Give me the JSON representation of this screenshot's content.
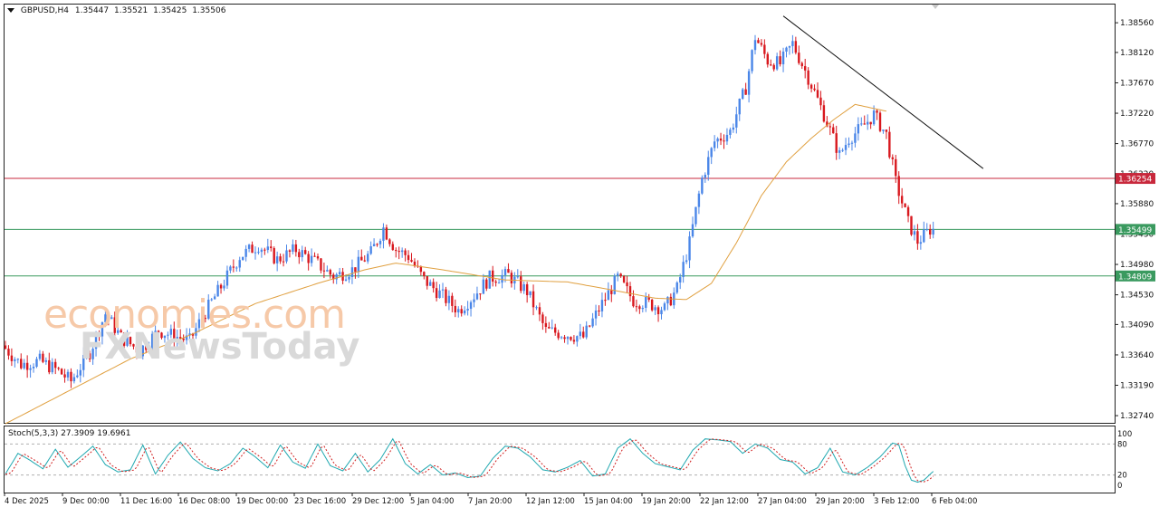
{
  "header": {
    "symbol": "GBPUSD,H4",
    "open": "1.35447",
    "high": "1.35521",
    "low": "1.35425",
    "close": "1.35506",
    "menu_icon": "triangle-down-icon"
  },
  "watermark": {
    "line1": "economies.com",
    "line2": "FXNewsToday"
  },
  "stoch": {
    "label": "Stoch(5,3,3) 27.3909 19.6961",
    "levels": [
      "100",
      "80",
      "20",
      "0"
    ]
  },
  "chart_data": {
    "type": "candlestick",
    "title": "GBPUSD,H4",
    "ylim": [
      1.3262,
      1.3883
    ],
    "y_ticks": [
      "1.38560",
      "1.38120",
      "1.37670",
      "1.37220",
      "1.36770",
      "1.36320",
      "1.35880",
      "1.35430",
      "1.34980",
      "1.34530",
      "1.34090",
      "1.33640",
      "1.33190",
      "1.32740"
    ],
    "x_ticks": [
      "4 Dec 2025",
      "9 Dec 00:00",
      "11 Dec 16:00",
      "16 Dec 08:00",
      "19 Dec 00:00",
      "23 Dec 16:00",
      "29 Dec 12:00",
      "5 Jan 04:00",
      "7 Jan 20:00",
      "12 Jan 12:00",
      "15 Jan 04:00",
      "19 Jan 20:00",
      "22 Jan 12:00",
      "27 Jan 04:00",
      "29 Jan 20:00",
      "3 Feb 12:00",
      "6 Feb 04:00"
    ],
    "price_levels": [
      {
        "value": 1.36254,
        "label": "1.36254",
        "color": "#c8283c"
      },
      {
        "value": 1.35499,
        "label": "1.35499",
        "color": "#3a9a5f"
      },
      {
        "value": 1.34809,
        "label": "1.34809",
        "color": "#3a9a5f"
      }
    ],
    "colors": {
      "bull": "#4a86e8",
      "bear": "#d8181e",
      "ma": "#e0a040",
      "stoch_main": "#20a8b0",
      "stoch_signal": "#d02020"
    },
    "anchors": [
      [
        0,
        1.3378
      ],
      [
        6,
        1.335
      ],
      [
        12,
        1.3355
      ],
      [
        18,
        1.334
      ],
      [
        22,
        1.3325
      ],
      [
        28,
        1.3368
      ],
      [
        33,
        1.3425
      ],
      [
        38,
        1.339
      ],
      [
        44,
        1.337
      ],
      [
        50,
        1.34
      ],
      [
        55,
        1.3392
      ],
      [
        60,
        1.3385
      ],
      [
        64,
        1.342
      ],
      [
        70,
        1.3465
      ],
      [
        76,
        1.351
      ],
      [
        82,
        1.3527
      ],
      [
        88,
        1.3505
      ],
      [
        94,
        1.352
      ],
      [
        100,
        1.3502
      ],
      [
        106,
        1.348
      ],
      [
        112,
        1.349
      ],
      [
        118,
        1.3515
      ],
      [
        122,
        1.3552
      ],
      [
        126,
        1.352
      ],
      [
        130,
        1.351
      ],
      [
        135,
        1.3475
      ],
      [
        140,
        1.3455
      ],
      [
        146,
        1.343
      ],
      [
        151,
        1.3452
      ],
      [
        156,
        1.3478
      ],
      [
        162,
        1.3482
      ],
      [
        168,
        1.3458
      ],
      [
        174,
        1.34
      ],
      [
        180,
        1.3395
      ],
      [
        186,
        1.339
      ],
      [
        192,
        1.344
      ],
      [
        197,
        1.3478
      ],
      [
        202,
        1.3445
      ],
      [
        207,
        1.344
      ],
      [
        212,
        1.3432
      ],
      [
        216,
        1.3462
      ],
      [
        220,
        1.353
      ],
      [
        224,
        1.3625
      ],
      [
        228,
        1.368
      ],
      [
        233,
        1.3695
      ],
      [
        238,
        1.376
      ],
      [
        241,
        1.3835
      ],
      [
        245,
        1.38
      ],
      [
        249,
        1.3795
      ],
      [
        253,
        1.3825
      ],
      [
        258,
        1.3775
      ],
      [
        263,
        1.372
      ],
      [
        268,
        1.366
      ],
      [
        271,
        1.3685
      ],
      [
        275,
        1.37
      ],
      [
        279,
        1.372
      ],
      [
        283,
        1.369
      ],
      [
        286,
        1.362
      ],
      [
        290,
        1.356
      ],
      [
        293,
        1.3532
      ],
      [
        296,
        1.3545
      ],
      [
        297,
        1.355
      ]
    ],
    "ma_anchors": [
      [
        0,
        1.3262
      ],
      [
        20,
        1.331
      ],
      [
        40,
        1.3358
      ],
      [
        60,
        1.3395
      ],
      [
        80,
        1.344
      ],
      [
        100,
        1.347
      ],
      [
        115,
        1.349
      ],
      [
        125,
        1.35
      ],
      [
        140,
        1.349
      ],
      [
        160,
        1.3475
      ],
      [
        180,
        1.3472
      ],
      [
        192,
        1.3462
      ],
      [
        208,
        1.3448
      ],
      [
        218,
        1.3446
      ],
      [
        226,
        1.347
      ],
      [
        234,
        1.353
      ],
      [
        242,
        1.36
      ],
      [
        250,
        1.365
      ],
      [
        258,
        1.3685
      ],
      [
        265,
        1.3712
      ],
      [
        272,
        1.3735
      ],
      [
        282,
        1.3725
      ]
    ],
    "trendline": [
      [
        1.3866,
        249
      ],
      [
        1.364,
        313
      ]
    ],
    "stoch_anchors": [
      [
        0,
        22
      ],
      [
        4,
        62
      ],
      [
        8,
        48
      ],
      [
        12,
        32
      ],
      [
        16,
        70
      ],
      [
        20,
        35
      ],
      [
        24,
        55
      ],
      [
        28,
        76
      ],
      [
        32,
        40
      ],
      [
        36,
        26
      ],
      [
        40,
        30
      ],
      [
        44,
        78
      ],
      [
        48,
        22
      ],
      [
        52,
        58
      ],
      [
        56,
        84
      ],
      [
        60,
        52
      ],
      [
        64,
        34
      ],
      [
        68,
        28
      ],
      [
        72,
        42
      ],
      [
        76,
        72
      ],
      [
        80,
        55
      ],
      [
        84,
        34
      ],
      [
        88,
        78
      ],
      [
        92,
        45
      ],
      [
        96,
        33
      ],
      [
        100,
        80
      ],
      [
        104,
        38
      ],
      [
        108,
        28
      ],
      [
        112,
        62
      ],
      [
        116,
        26
      ],
      [
        120,
        50
      ],
      [
        124,
        90
      ],
      [
        128,
        42
      ],
      [
        132,
        22
      ],
      [
        136,
        40
      ],
      [
        140,
        20
      ],
      [
        144,
        24
      ],
      [
        148,
        15
      ],
      [
        152,
        18
      ],
      [
        156,
        52
      ],
      [
        160,
        76
      ],
      [
        164,
        72
      ],
      [
        168,
        55
      ],
      [
        172,
        30
      ],
      [
        176,
        26
      ],
      [
        180,
        35
      ],
      [
        184,
        48
      ],
      [
        188,
        18
      ],
      [
        192,
        22
      ],
      [
        196,
        72
      ],
      [
        200,
        90
      ],
      [
        204,
        62
      ],
      [
        208,
        42
      ],
      [
        212,
        36
      ],
      [
        216,
        30
      ],
      [
        220,
        68
      ],
      [
        224,
        90
      ],
      [
        228,
        88
      ],
      [
        232,
        85
      ],
      [
        236,
        62
      ],
      [
        240,
        80
      ],
      [
        244,
        72
      ],
      [
        248,
        50
      ],
      [
        252,
        45
      ],
      [
        256,
        22
      ],
      [
        260,
        34
      ],
      [
        264,
        72
      ],
      [
        268,
        26
      ],
      [
        272,
        20
      ],
      [
        276,
        35
      ],
      [
        280,
        55
      ],
      [
        284,
        82
      ],
      [
        286,
        78
      ],
      [
        288,
        38
      ],
      [
        290,
        10
      ],
      [
        292,
        6
      ],
      [
        294,
        10
      ],
      [
        297,
        27
      ]
    ]
  }
}
